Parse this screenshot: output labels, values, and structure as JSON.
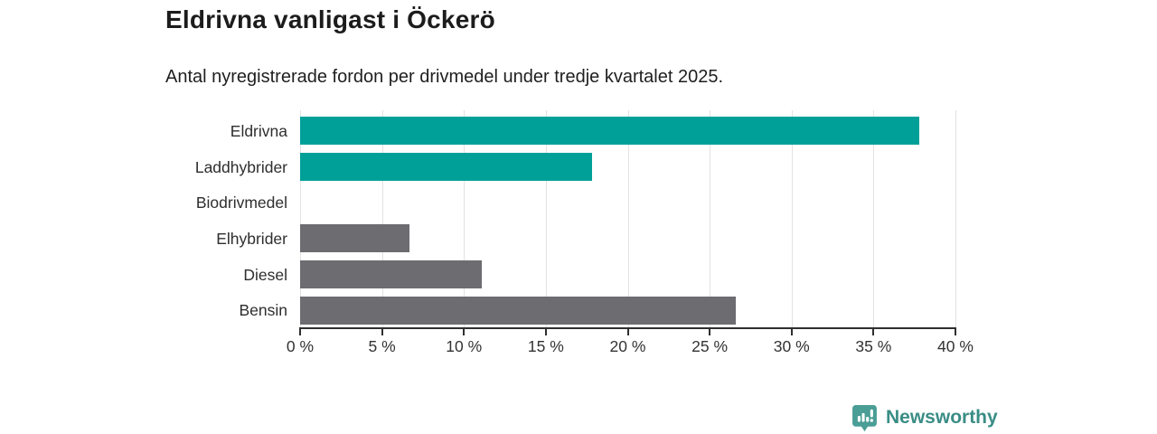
{
  "chart_data": {
    "type": "bar",
    "orientation": "horizontal",
    "title": "Eldrivna vanligast i Öckerö",
    "subtitle": "Antal nyregistrerade fordon per drivmedel under tredje kvartalet 2025.",
    "categories": [
      "Eldrivna",
      "Laddhybrider",
      "Biodrivmedel",
      "Elhybrider",
      "Diesel",
      "Bensin"
    ],
    "values": [
      37.8,
      17.8,
      0,
      6.7,
      11.1,
      26.6
    ],
    "bar_colors": [
      "#00a099",
      "#00a099",
      "#6d6c71",
      "#6d6c71",
      "#6d6c71",
      "#6d6c71"
    ],
    "xlabel": "",
    "ylabel": "",
    "xlim": [
      0,
      40
    ],
    "x_ticks": [
      "0 %",
      "5 %",
      "10 %",
      "15 %",
      "20 %",
      "25 %",
      "30 %",
      "35 %",
      "40 %"
    ],
    "grid": true,
    "legend": "none"
  },
  "colors": {
    "accent_teal": "#00a099",
    "neutral_gray": "#6d6c71",
    "gridline": "#e2e2e2",
    "axis": "#2f2f2f",
    "text_dark": "#1c1c1c",
    "brand_teal": "#3a8d85",
    "brand_icon_teal": "#4a9e96"
  },
  "footer": {
    "brand": "Newsworthy"
  }
}
